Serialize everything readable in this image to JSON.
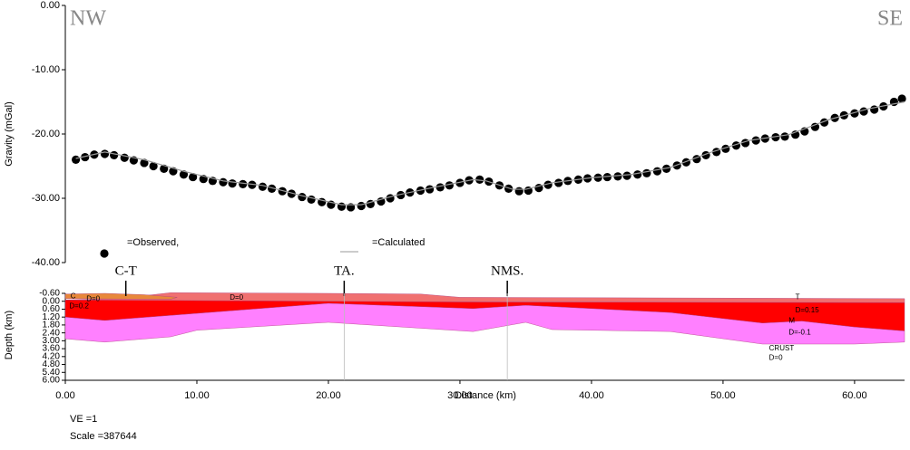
{
  "chart_data": [
    {
      "type": "scatter",
      "left_label": "NW",
      "right_label": "SE",
      "y_label": "Gravity (mGal)",
      "xlim": [
        0,
        63.8
      ],
      "ylim": [
        -40,
        0
      ],
      "yticks": [
        {
          "value": 0,
          "label": "0.00"
        },
        {
          "value": -10,
          "label": "-10.00"
        },
        {
          "value": -20,
          "label": "-20.00"
        },
        {
          "value": -30,
          "label": "-30.00"
        },
        {
          "value": -40,
          "label": "-40.00"
        }
      ],
      "series": [
        {
          "name": "=Observed,",
          "color": "#000000",
          "marker": "dot",
          "x": [
            0.8,
            1.5,
            2.2,
            3,
            3.7,
            4.5,
            5.2,
            6,
            6.7,
            7.5,
            8.2,
            9,
            9.7,
            10.5,
            11.2,
            12,
            12.7,
            13.5,
            14.2,
            15,
            15.7,
            16.5,
            17.2,
            18,
            18.7,
            19.5,
            20.2,
            21,
            21.7,
            22.5,
            23.2,
            24,
            24.7,
            25.5,
            26.2,
            27,
            27.7,
            28.5,
            29.2,
            30,
            30.7,
            31.5,
            32.2,
            33,
            33.7,
            34.5,
            35.2,
            36,
            36.7,
            37.5,
            38.2,
            39,
            39.7,
            40.5,
            41.2,
            42,
            42.7,
            43.5,
            44.2,
            45,
            45.7,
            46.5,
            47.2,
            48,
            48.7,
            49.5,
            50.2,
            51,
            51.7,
            52.5,
            53.2,
            54,
            54.7,
            55.5,
            56.2,
            57,
            57.7,
            58.5,
            59.2,
            60,
            60.7,
            61.5,
            62.2,
            63,
            63.6
          ],
          "values": [
            -24.0,
            -23.6,
            -23.2,
            -23.1,
            -23.3,
            -23.7,
            -24.1,
            -24.5,
            -25.0,
            -25.4,
            -25.8,
            -26.3,
            -26.7,
            -27.0,
            -27.3,
            -27.5,
            -27.7,
            -27.8,
            -27.9,
            -28.2,
            -28.5,
            -28.9,
            -29.3,
            -29.8,
            -30.2,
            -30.6,
            -31.0,
            -31.3,
            -31.4,
            -31.2,
            -30.9,
            -30.5,
            -30.0,
            -29.5,
            -29.1,
            -28.8,
            -28.6,
            -28.3,
            -28.0,
            -27.6,
            -27.2,
            -27.1,
            -27.4,
            -28.0,
            -28.5,
            -28.9,
            -28.8,
            -28.4,
            -27.9,
            -27.6,
            -27.3,
            -27.1,
            -26.9,
            -26.8,
            -26.7,
            -26.6,
            -26.5,
            -26.3,
            -26.1,
            -25.8,
            -25.4,
            -24.9,
            -24.4,
            -23.9,
            -23.3,
            -22.8,
            -22.3,
            -21.8,
            -21.4,
            -21.0,
            -20.7,
            -20.5,
            -20.4,
            -20.1,
            -19.6,
            -18.9,
            -18.2,
            -17.5,
            -17.1,
            -16.8,
            -16.5,
            -16.2,
            -15.7,
            -15.0,
            -14.5
          ]
        },
        {
          "name": "=Calculated",
          "color": "#9a9a9a",
          "marker": "line",
          "x": [
            0.8,
            3,
            6,
            9,
            12,
            15,
            18,
            21,
            22.5,
            25,
            28,
            31,
            32,
            34,
            35,
            37,
            40,
            43,
            46,
            49,
            52,
            55,
            58,
            61,
            63.8
          ],
          "values": [
            -23.8,
            -22.8,
            -24.0,
            -25.8,
            -27.3,
            -28.0,
            -29.6,
            -31.0,
            -31.0,
            -29.6,
            -28.3,
            -27.1,
            -27.3,
            -28.6,
            -28.6,
            -27.6,
            -26.8,
            -26.3,
            -25.2,
            -22.9,
            -21.0,
            -20.1,
            -17.8,
            -16.1,
            -15.0
          ]
        }
      ]
    },
    {
      "type": "polygon",
      "y_label": "Depth (km)",
      "x_label": "Distance (km)",
      "xlim": [
        0,
        63.8
      ],
      "ylim": [
        6,
        -0.6
      ],
      "xticks": [
        {
          "value": 0,
          "label": "0.00"
        },
        {
          "value": 10,
          "label": "10.00"
        },
        {
          "value": 20,
          "label": "20.00"
        },
        {
          "value": 30,
          "label": "30.00"
        },
        {
          "value": 40,
          "label": "40.00"
        },
        {
          "value": 50,
          "label": "50.00"
        },
        {
          "value": 60,
          "label": "60.00"
        }
      ],
      "yticks": [
        {
          "value": -0.6,
          "label": "-0.60"
        },
        {
          "value": 0,
          "label": "0.00"
        },
        {
          "value": 0.6,
          "label": "0.60"
        },
        {
          "value": 1.2,
          "label": "1.20"
        },
        {
          "value": 1.8,
          "label": "1.80"
        },
        {
          "value": 2.4,
          "label": "2.40"
        },
        {
          "value": 3,
          "label": "3.00"
        },
        {
          "value": 3.6,
          "label": "3.60"
        },
        {
          "value": 4.2,
          "label": "4.20"
        },
        {
          "value": 4.8,
          "label": "4.80"
        },
        {
          "value": 5.4,
          "label": "5.40"
        },
        {
          "value": 6,
          "label": "6.00"
        }
      ],
      "bodies": [
        {
          "color": "#ff80ff",
          "x": [
            0,
            3,
            20,
            31,
            35,
            46,
            53,
            56,
            60,
            63.8,
            63.8,
            60,
            53,
            46,
            37,
            35,
            31,
            20,
            10,
            8,
            3,
            0
          ],
          "depth": [
            1.2,
            1.45,
            0.15,
            0.55,
            0.3,
            0.85,
            1.65,
            1.5,
            1.95,
            2.25,
            3.1,
            3.25,
            3.25,
            2.3,
            2.15,
            1.6,
            2.3,
            1.6,
            2.2,
            2.7,
            3.1,
            2.85
          ]
        },
        {
          "color": "#ff0000",
          "x": [
            0,
            8,
            20,
            30,
            63.8,
            63.8,
            60,
            56,
            53,
            46,
            35,
            31,
            20,
            3,
            0
          ],
          "depth": [
            -0.1,
            -0.1,
            -0.05,
            0.05,
            0.1,
            2.25,
            1.95,
            1.5,
            1.65,
            0.85,
            0.3,
            0.55,
            0.15,
            1.45,
            1.2
          ]
        },
        {
          "color": "#f07070",
          "x": [
            4,
            8,
            20,
            27,
            30,
            63.8,
            63.8,
            30,
            0
          ],
          "depth": [
            -0.2,
            -0.65,
            -0.6,
            -0.55,
            -0.3,
            -0.2,
            0.1,
            0.05,
            -0.1
          ]
        },
        {
          "color": "#e8883a",
          "x": [
            0,
            3,
            6,
            8.5,
            8,
            0
          ],
          "depth": [
            -0.55,
            -0.6,
            -0.5,
            -0.3,
            -0.15,
            -0.2
          ]
        }
      ],
      "stations": [
        {
          "label": "C-T",
          "x": 4.6
        },
        {
          "label": "TA.",
          "x": 21.2
        },
        {
          "label": "NMS.",
          "x": 33.6
        }
      ],
      "annotations": [
        {
          "text": "C",
          "x": 0.4,
          "y": -0.35
        },
        {
          "text": "D=0",
          "x": 1.6,
          "y": -0.15
        },
        {
          "text": "D=0.2",
          "x": 0.3,
          "y": 0.4
        },
        {
          "text": "D=0",
          "x": 12.5,
          "y": -0.25
        },
        {
          "text": "T",
          "x": 55.5,
          "y": -0.3
        },
        {
          "text": "D=0.15",
          "x": 55.5,
          "y": 0.7
        },
        {
          "text": "M",
          "x": 55,
          "y": 1.5
        },
        {
          "text": "D=-0.1",
          "x": 55,
          "y": 2.4
        },
        {
          "text": "CRUST",
          "x": 53.5,
          "y": 3.6
        },
        {
          "text": "D=0",
          "x": 53.5,
          "y": 4.3
        }
      ]
    }
  ],
  "footer": [
    "VE =1",
    "Scale =387644"
  ]
}
